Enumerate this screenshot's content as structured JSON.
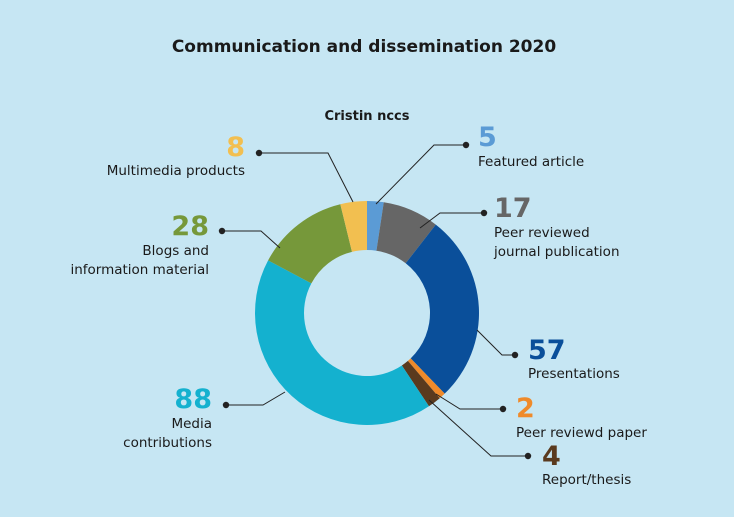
{
  "chart_data": {
    "type": "pie",
    "donut": true,
    "title": "Communication and dissemination 2020",
    "subtitle": "Cristin nccs",
    "slices": [
      {
        "label": "Featured article",
        "value": 5,
        "color": "#5b9bd5",
        "label_lines": [
          "Featured article"
        ]
      },
      {
        "label": "Peer reviewed journal publication",
        "value": 17,
        "color": "#666666",
        "label_lines": [
          "Peer reviewed",
          "journal publication"
        ]
      },
      {
        "label": "Presentations",
        "value": 57,
        "color": "#0a4f9a",
        "label_lines": [
          "Presentations"
        ]
      },
      {
        "label": "Peer reviewd paper",
        "value": 2,
        "color": "#ef8a2a",
        "label_lines": [
          "Peer reviewd paper"
        ]
      },
      {
        "label": "Report/thesis",
        "value": 4,
        "color": "#5a3a1e",
        "label_lines": [
          "Report/thesis"
        ]
      },
      {
        "label": "Media contributions",
        "value": 88,
        "color": "#14b1cf",
        "label_lines": [
          "Media",
          "contributions"
        ]
      },
      {
        "label": "Blogs and information material",
        "value": 28,
        "color": "#76983a",
        "label_lines": [
          "Blogs and",
          "information material"
        ]
      },
      {
        "label": "Multimedia products",
        "value": 8,
        "color": "#f2bf50",
        "label_lines": [
          "Multimedia products"
        ]
      }
    ]
  }
}
